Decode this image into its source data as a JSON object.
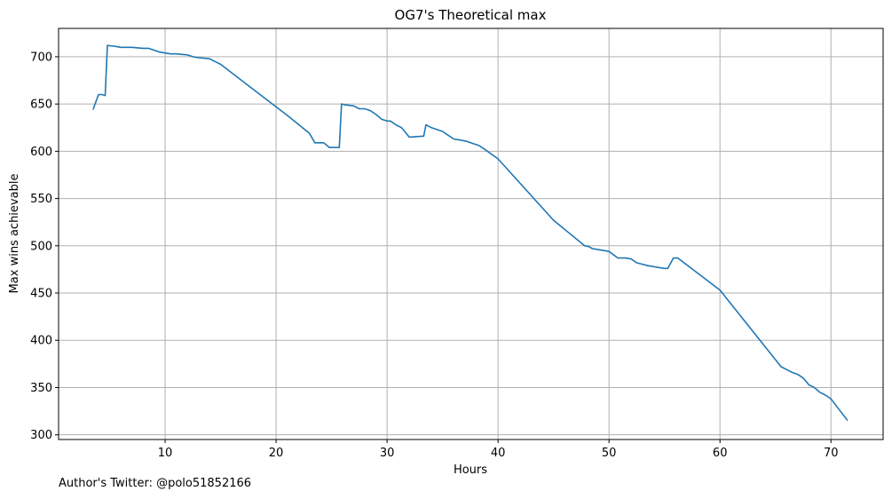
{
  "chart_data": {
    "type": "line",
    "title": "OG7's Theoretical max",
    "xlabel": "Hours",
    "ylabel": "Max wins achievable",
    "xlim": [
      0.4,
      74.7
    ],
    "ylim": [
      295,
      730
    ],
    "xticks": [
      10,
      20,
      30,
      40,
      50,
      60,
      70
    ],
    "yticks": [
      300,
      350,
      400,
      450,
      500,
      550,
      600,
      650,
      700
    ],
    "grid": true,
    "series": [
      {
        "color": "#1f77b4",
        "x": [
          3.5,
          4.0,
          4.3,
          4.6,
          4.8,
          5.5,
          6.0,
          7.0,
          8.0,
          8.5,
          9.0,
          9.5,
          10.0,
          10.5,
          11.0,
          12.0,
          12.5,
          13.0,
          14.0,
          14.5,
          15.0,
          18.0,
          21.0,
          23.0,
          23.5,
          24.3,
          24.8,
          25.7,
          25.9,
          26.3,
          27.0,
          27.5,
          28.0,
          28.5,
          29.0,
          29.5,
          30.0,
          30.3,
          30.8,
          31.3,
          32.0,
          33.3,
          33.5,
          34.0,
          35.0,
          35.5,
          36.0,
          36.5,
          37.0,
          37.3,
          37.8,
          38.3,
          38.8,
          40.0,
          45.0,
          47.8,
          48.2,
          48.5,
          49.0,
          49.5,
          50.0,
          50.8,
          51.5,
          52.0,
          52.5,
          53.5,
          54.5,
          55.0,
          55.3,
          55.8,
          56.2,
          60.0,
          65.5,
          66.0,
          66.5,
          67.0,
          67.5,
          68.0,
          68.5,
          69.0,
          69.5,
          70.0,
          71.5
        ],
        "y": [
          644,
          660,
          660,
          659,
          712,
          711,
          710,
          710,
          709,
          709,
          707,
          705,
          704,
          703,
          703,
          702,
          700,
          699,
          698,
          695,
          692,
          665,
          638,
          619,
          609,
          609,
          604,
          604,
          650,
          649,
          648,
          645,
          645,
          643,
          639,
          634,
          632,
          632,
          628,
          625,
          615,
          616,
          628,
          625,
          621,
          617,
          613,
          612,
          611,
          610,
          608,
          606,
          602,
          592,
          527,
          500,
          499,
          497,
          496,
          495,
          494,
          487,
          487,
          486,
          482,
          479,
          477,
          476,
          476,
          487,
          487,
          453,
          372,
          369,
          366,
          364,
          360,
          353,
          350,
          345,
          342,
          338,
          315
        ]
      }
    ]
  },
  "footer": {
    "author": "Author's Twitter: @polo51852166"
  }
}
